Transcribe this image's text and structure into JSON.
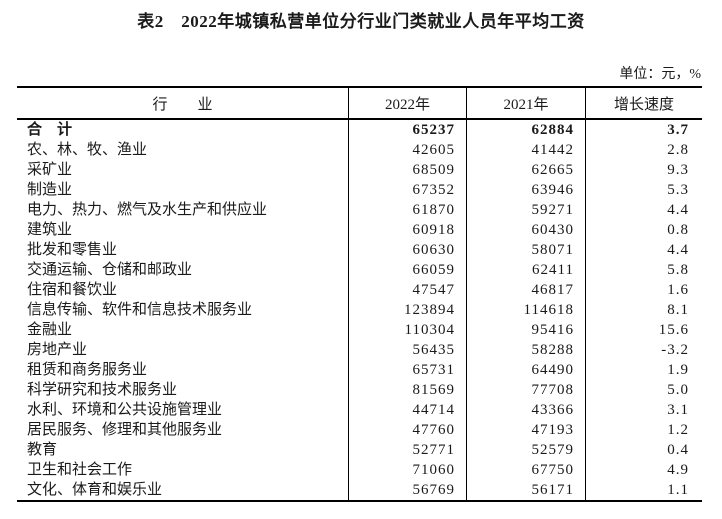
{
  "title": "表2　2022年城镇私营单位分行业门类就业人员年平均工资",
  "unit_label": "单位：元，%",
  "colors": {
    "text": "#1a1a1a",
    "border": "#000000",
    "background": "#ffffff"
  },
  "table": {
    "headers": {
      "industry": "行　　业",
      "y2022": "2022年",
      "y2021": "2021年",
      "growth": "增长速度"
    },
    "rows": [
      {
        "industry": "合　计",
        "y2022": "65237",
        "y2021": "62884",
        "growth": "3.7",
        "bold": true
      },
      {
        "industry": "农、林、牧、渔业",
        "y2022": "42605",
        "y2021": "41442",
        "growth": "2.8"
      },
      {
        "industry": "采矿业",
        "y2022": "68509",
        "y2021": "62665",
        "growth": "9.3"
      },
      {
        "industry": "制造业",
        "y2022": "67352",
        "y2021": "63946",
        "growth": "5.3"
      },
      {
        "industry": "电力、热力、燃气及水生产和供应业",
        "y2022": "61870",
        "y2021": "59271",
        "growth": "4.4"
      },
      {
        "industry": "建筑业",
        "y2022": "60918",
        "y2021": "60430",
        "growth": "0.8"
      },
      {
        "industry": "批发和零售业",
        "y2022": "60630",
        "y2021": "58071",
        "growth": "4.4"
      },
      {
        "industry": "交通运输、仓储和邮政业",
        "y2022": "66059",
        "y2021": "62411",
        "growth": "5.8"
      },
      {
        "industry": "住宿和餐饮业",
        "y2022": "47547",
        "y2021": "46817",
        "growth": "1.6"
      },
      {
        "industry": "信息传输、软件和信息技术服务业",
        "y2022": "123894",
        "y2021": "114618",
        "growth": "8.1"
      },
      {
        "industry": "金融业",
        "y2022": "110304",
        "y2021": "95416",
        "growth": "15.6"
      },
      {
        "industry": "房地产业",
        "y2022": "56435",
        "y2021": "58288",
        "growth": "-3.2"
      },
      {
        "industry": "租赁和商务服务业",
        "y2022": "65731",
        "y2021": "64490",
        "growth": "1.9"
      },
      {
        "industry": "科学研究和技术服务业",
        "y2022": "81569",
        "y2021": "77708",
        "growth": "5.0"
      },
      {
        "industry": "水利、环境和公共设施管理业",
        "y2022": "44714",
        "y2021": "43366",
        "growth": "3.1"
      },
      {
        "industry": "居民服务、修理和其他服务业",
        "y2022": "47760",
        "y2021": "47193",
        "growth": "1.2"
      },
      {
        "industry": "教育",
        "y2022": "52771",
        "y2021": "52579",
        "growth": "0.4"
      },
      {
        "industry": "卫生和社会工作",
        "y2022": "71060",
        "y2021": "67750",
        "growth": "4.9"
      },
      {
        "industry": "文化、体育和娱乐业",
        "y2022": "56769",
        "y2021": "56171",
        "growth": "1.1"
      }
    ]
  }
}
